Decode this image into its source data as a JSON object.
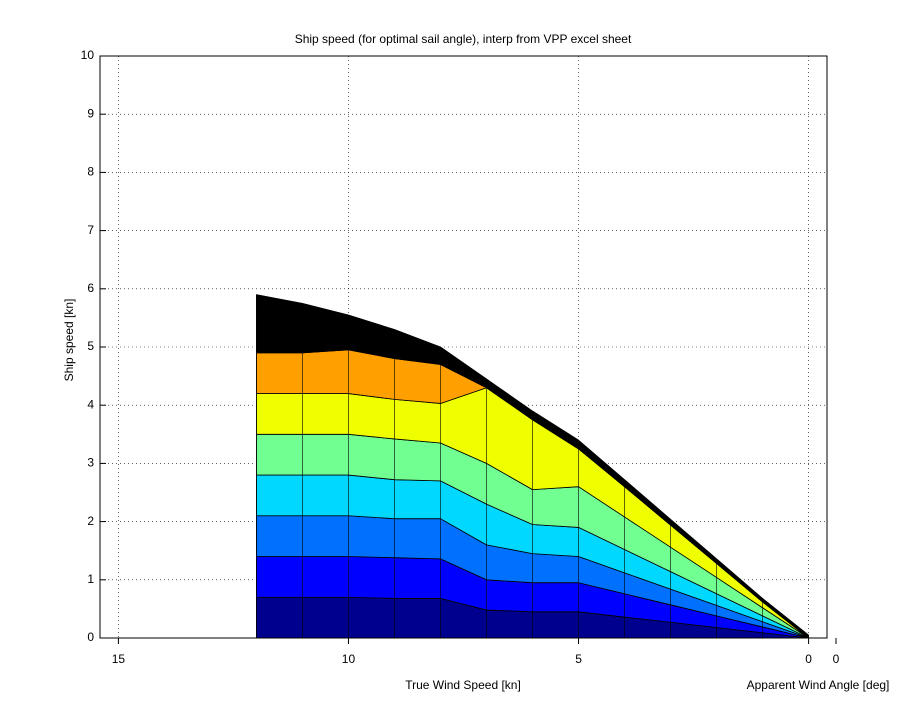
{
  "chart_data": {
    "type": "area",
    "title": "Ship speed (for optimal sail angle), interp from VPP excel sheet",
    "x_label": "True Wind Speed [kn]",
    "x2_label": "Apparent Wind Angle [deg]",
    "y_label": "Ship speed [kn]",
    "stacked": true,
    "grid": true,
    "x": [
      12,
      11,
      10,
      9,
      8,
      7,
      6,
      5,
      4,
      3,
      2,
      1,
      0
    ],
    "xlim": [
      15.4,
      -0.4
    ],
    "xticks": [
      15,
      10,
      5,
      0
    ],
    "x2lim": [
      0,
      180
    ],
    "x2ticks": [
      0
    ],
    "ylim": [
      0,
      10
    ],
    "yticks": [
      0,
      1,
      2,
      3,
      4,
      5,
      6,
      7,
      8,
      9,
      10
    ],
    "series": [
      {
        "color": "#00008f",
        "values": [
          0.7,
          0.7,
          0.7,
          0.68,
          0.68,
          0.48,
          0.45,
          0.45,
          0.36,
          0.27,
          0.18,
          0.09,
          0
        ]
      },
      {
        "color": "#0000ff",
        "values": [
          0.7,
          0.7,
          0.7,
          0.7,
          0.68,
          0.52,
          0.5,
          0.5,
          0.4,
          0.3,
          0.2,
          0.1,
          0
        ]
      },
      {
        "color": "#0070ff",
        "values": [
          0.7,
          0.7,
          0.7,
          0.67,
          0.69,
          0.6,
          0.5,
          0.45,
          0.36,
          0.27,
          0.18,
          0.09,
          0
        ]
      },
      {
        "color": "#00d8ff",
        "values": [
          0.7,
          0.7,
          0.7,
          0.67,
          0.65,
          0.7,
          0.5,
          0.5,
          0.4,
          0.3,
          0.2,
          0.1,
          0
        ]
      },
      {
        "color": "#70ff90",
        "values": [
          0.7,
          0.7,
          0.7,
          0.7,
          0.65,
          0.7,
          0.6,
          0.7,
          0.56,
          0.42,
          0.28,
          0.14,
          0
        ]
      },
      {
        "color": "#f0ff00",
        "values": [
          0.7,
          0.7,
          0.7,
          0.68,
          0.68,
          1.3,
          1.2,
          0.65,
          0.52,
          0.38,
          0.24,
          0.1,
          0
        ]
      },
      {
        "color": "#ffa000",
        "values": [
          0.7,
          0.7,
          0.75,
          0.7,
          0.67,
          0,
          0,
          0,
          0,
          0,
          0,
          0,
          0
        ]
      },
      {
        "color": "#000000",
        "values": [
          1.0,
          0.85,
          0.6,
          0.5,
          0.3,
          0.15,
          0.15,
          0.15,
          0.12,
          0.1,
          0.08,
          0.06,
          0.05
        ]
      }
    ]
  }
}
